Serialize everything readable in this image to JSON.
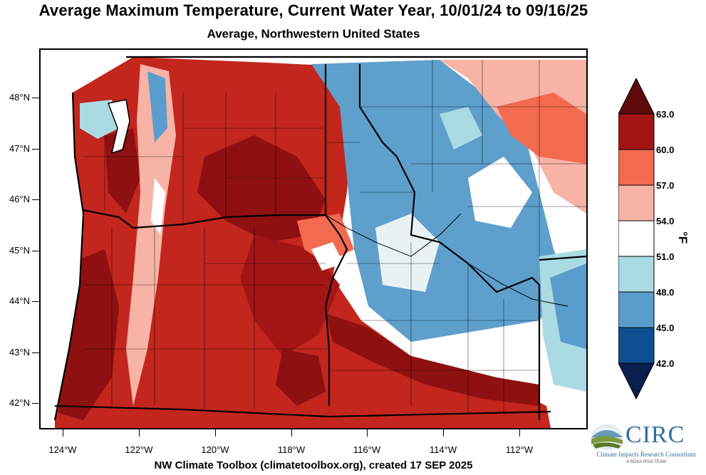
{
  "title": "Average Maximum Temperature, Current Water Year, 10/01/24 to 09/16/25",
  "subtitle": "Average, Northwestern United States",
  "latitudes": [
    "48°N",
    "47°N",
    "46°N",
    "45°N",
    "44°N",
    "43°N",
    "42°N"
  ],
  "longitudes": [
    "124°W",
    "122°W",
    "120°W",
    "118°W",
    "116°W",
    "114°W",
    "112°W"
  ],
  "colorbar": {
    "unit": "°F",
    "labels": [
      "63.0",
      "60.0",
      "57.0",
      "54.0",
      "51.0",
      "48.0",
      "45.0",
      "42.0"
    ],
    "colors": {
      "above_63": "#5e0a0a",
      "60_63": "#a31515",
      "57_60": "#f26a4f",
      "54_57": "#f7b3a6",
      "51_54": "#ffffff",
      "48_51": "#aadbe3",
      "45_48": "#5a9dcc",
      "42_45": "#0e4f91",
      "below_42": "#0a1f4e"
    }
  },
  "credit": "NW Climate Toolbox (climatetoolbox.org), created 17 SEP 2025",
  "logo": {
    "name": "CIRC",
    "full_name": "Climate Impacts Research Consortium",
    "tagline": "A NOAA RISA TEAM"
  }
}
